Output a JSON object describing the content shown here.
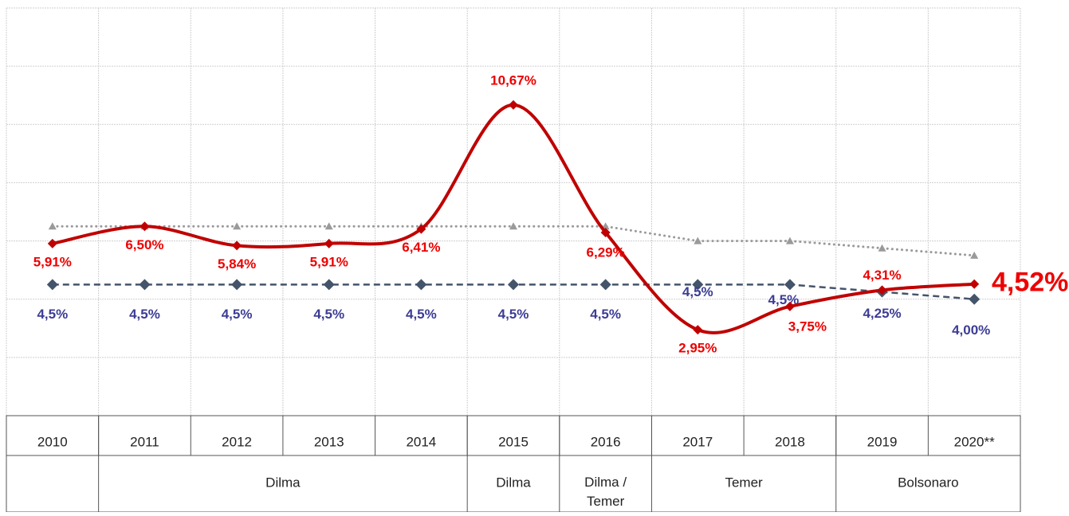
{
  "chart_data": {
    "type": "line",
    "categories": [
      "2010",
      "2011",
      "2012",
      "2013",
      "2014",
      "2015",
      "2016",
      "2017",
      "2018",
      "2019",
      "2020**"
    ],
    "periods": [
      {
        "label": "Dilma",
        "from": "2011",
        "to": "2014"
      },
      {
        "label": "Dilma",
        "from": "2015",
        "to": "2015"
      },
      {
        "label": "Dilma / Temer",
        "from": "2016",
        "to": "2016"
      },
      {
        "label": "Temer",
        "from": "2017",
        "to": "2018"
      },
      {
        "label": "Bolsonaro",
        "from": "2019",
        "to": "2020**"
      }
    ],
    "series": [
      {
        "color": "#9a9a9a",
        "style": "dotted",
        "marker": "triangle",
        "values": [
          6.5,
          6.5,
          6.5,
          6.5,
          6.5,
          6.5,
          6.5,
          6.0,
          6.0,
          5.75,
          5.5
        ]
      },
      {
        "color": "#44546a",
        "style": "dashed",
        "marker": "diamond",
        "label_color": "#3c3c96",
        "values": [
          4.5,
          4.5,
          4.5,
          4.5,
          4.5,
          4.5,
          4.5,
          4.5,
          4.5,
          4.25,
          4.0
        ],
        "value_labels": [
          "4,5%",
          "4,5%",
          "4,5%",
          "4,5%",
          "4,5%",
          "4,5%",
          "4,5%",
          "4,5%",
          "4,5%",
          "4,25%",
          "4,00%"
        ]
      },
      {
        "color": "#c00000",
        "style": "smooth",
        "marker": "diamond",
        "label_color": "#ee0000",
        "values": [
          5.91,
          6.5,
          5.84,
          5.91,
          6.41,
          10.67,
          6.29,
          2.95,
          3.75,
          4.31,
          4.52
        ],
        "value_labels": [
          "5,91%",
          "6,50%",
          "5,84%",
          "5,91%",
          "6,41%",
          "10,67%",
          "6,29%",
          "2,95%",
          "3,75%",
          "4,31%",
          "4,52%"
        ]
      }
    ],
    "ylim": [
      0,
      14
    ],
    "yticks": [
      0,
      2,
      4,
      6,
      8,
      10,
      12,
      14
    ],
    "grid": true
  }
}
